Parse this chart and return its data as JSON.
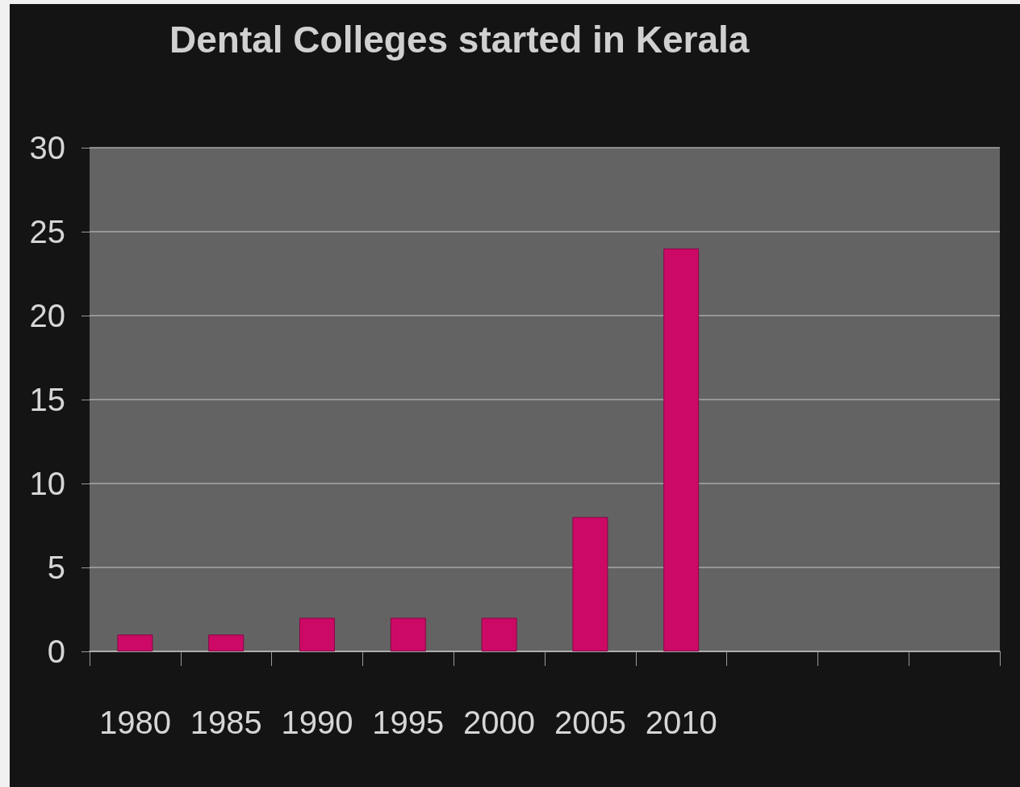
{
  "chart_data": {
    "type": "bar",
    "title": "Dental Colleges started in Kerala",
    "categories": [
      "1980",
      "1985",
      "1990",
      "1995",
      "2000",
      "2005",
      "2010",
      null,
      null,
      null
    ],
    "values": [
      1,
      1,
      2,
      2,
      2,
      8,
      24,
      null,
      null,
      null
    ],
    "color": "#cc0a66",
    "ylim": [
      0,
      30
    ],
    "yticks": [
      0,
      5,
      10,
      15,
      20,
      25,
      30
    ],
    "grid": "y"
  }
}
